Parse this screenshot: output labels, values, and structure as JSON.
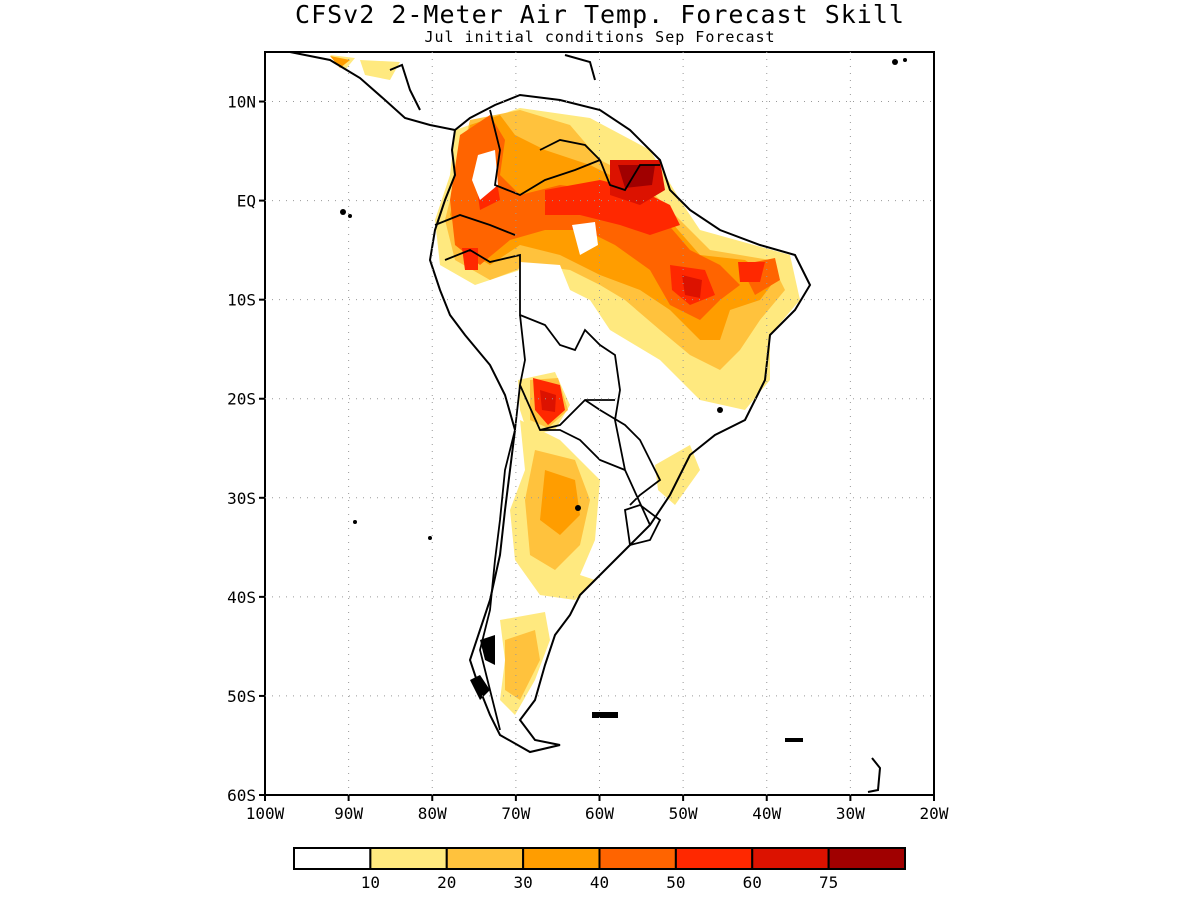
{
  "title": "CFSv2 2-Meter Air Temp. Forecast Skill",
  "subtitle": "Jul initial conditions   Sep Forecast",
  "map": {
    "region": "South America",
    "lon_range": [
      -100,
      -20
    ],
    "lat_range": [
      -60,
      15
    ],
    "lat_ticks": [
      {
        "lat": 10,
        "label": "10N"
      },
      {
        "lat": 0,
        "label": "EQ"
      },
      {
        "lat": -10,
        "label": "10S"
      },
      {
        "lat": -20,
        "label": "20S"
      },
      {
        "lat": -30,
        "label": "30S"
      },
      {
        "lat": -40,
        "label": "40S"
      },
      {
        "lat": -50,
        "label": "50S"
      },
      {
        "lat": -60,
        "label": "60S"
      }
    ],
    "lon_ticks": [
      {
        "lon": -100,
        "label": "100W"
      },
      {
        "lon": -90,
        "label": "90W"
      },
      {
        "lon": -80,
        "label": "80W"
      },
      {
        "lon": -70,
        "label": "70W"
      },
      {
        "lon": -60,
        "label": "60W"
      },
      {
        "lon": -50,
        "label": "50W"
      },
      {
        "lon": -40,
        "label": "40W"
      },
      {
        "lon": -30,
        "label": "30W"
      },
      {
        "lon": -20,
        "label": "20W"
      }
    ],
    "grid": "dotted"
  },
  "colorbar": {
    "bins": [
      {
        "color": "#ffffff"
      },
      {
        "color": "#ffe97f"
      },
      {
        "color": "#ffc23d"
      },
      {
        "color": "#ff9d00"
      },
      {
        "color": "#ff6400"
      },
      {
        "color": "#ff2800"
      },
      {
        "color": "#dc1200"
      },
      {
        "color": "#a00000"
      }
    ],
    "labels": [
      "10",
      "20",
      "30",
      "40",
      "50",
      "60",
      "75"
    ]
  }
}
